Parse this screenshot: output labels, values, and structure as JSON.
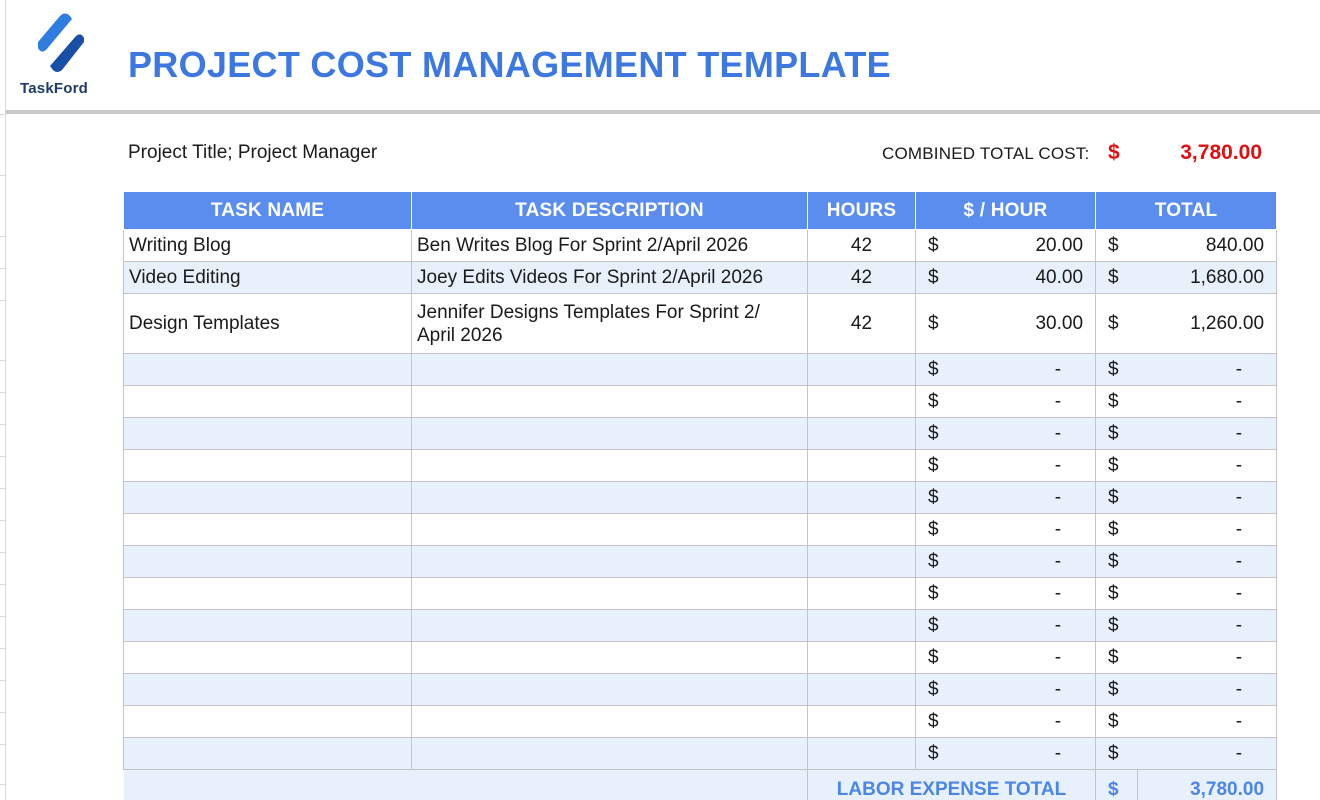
{
  "header": {
    "logo_text": "TaskFord",
    "title": "PROJECT COST MANAGEMENT TEMPLATE"
  },
  "summary": {
    "project_label": "Project Title; Project Manager",
    "combined_label": "COMBINED TOTAL COST:",
    "combined_currency": "$",
    "combined_value": "3,780.00"
  },
  "table": {
    "columns": [
      "TASK NAME",
      "TASK DESCRIPTION",
      "HOURS",
      "$ / HOUR",
      "TOTAL"
    ],
    "currency": "$",
    "rows": [
      {
        "name": "Writing Blog",
        "description": "Ben Writes Blog For Sprint 2/April 2026",
        "hours": "42",
        "rate": "20.00",
        "total": "840.00"
      },
      {
        "name": "Video Editing",
        "description": "Joey Edits Videos For Sprint 2/April 2026",
        "hours": "42",
        "rate": "40.00",
        "total": "1,680.00"
      },
      {
        "name": "Design Templates",
        "description": "Jennifer Designs Templates For Sprint 2/ April 2026",
        "hours": "42",
        "rate": "30.00",
        "total": "1,260.00"
      },
      {
        "name": "",
        "description": "",
        "hours": "",
        "rate": "-",
        "total": "-"
      },
      {
        "name": "",
        "description": "",
        "hours": "",
        "rate": "-",
        "total": "-"
      },
      {
        "name": "",
        "description": "",
        "hours": "",
        "rate": "-",
        "total": "-"
      },
      {
        "name": "",
        "description": "",
        "hours": "",
        "rate": "-",
        "total": "-"
      },
      {
        "name": "",
        "description": "",
        "hours": "",
        "rate": "-",
        "total": "-"
      },
      {
        "name": "",
        "description": "",
        "hours": "",
        "rate": "-",
        "total": "-"
      },
      {
        "name": "",
        "description": "",
        "hours": "",
        "rate": "-",
        "total": "-"
      },
      {
        "name": "",
        "description": "",
        "hours": "",
        "rate": "-",
        "total": "-"
      },
      {
        "name": "",
        "description": "",
        "hours": "",
        "rate": "-",
        "total": "-"
      },
      {
        "name": "",
        "description": "",
        "hours": "",
        "rate": "-",
        "total": "-"
      },
      {
        "name": "",
        "description": "",
        "hours": "",
        "rate": "-",
        "total": "-"
      },
      {
        "name": "",
        "description": "",
        "hours": "",
        "rate": "-",
        "total": "-"
      },
      {
        "name": "",
        "description": "",
        "hours": "",
        "rate": "-",
        "total": "-"
      }
    ],
    "footer": {
      "label": "LABOR EXPENSE TOTAL",
      "currency": "$",
      "value": "3,780.00"
    }
  },
  "colors": {
    "title_blue": "#3c78e0",
    "header_bg": "#5b8def",
    "alt_row": "#e8f0fc",
    "accent_red": "#e01010"
  }
}
